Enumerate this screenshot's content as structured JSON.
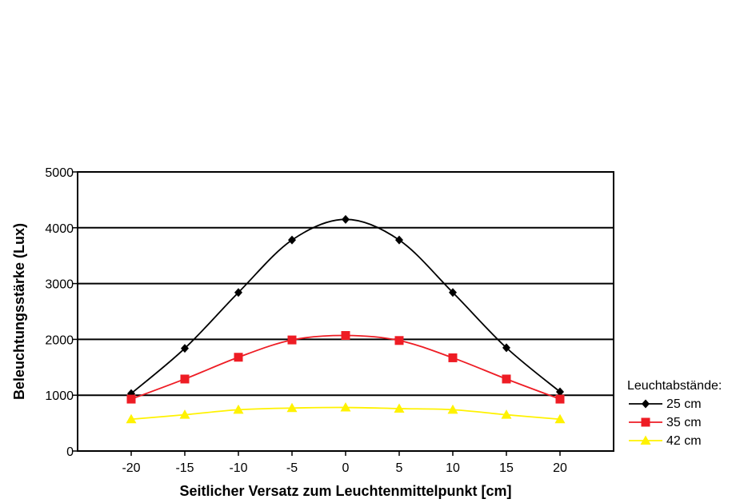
{
  "chart_data": {
    "type": "line",
    "x": [
      -20,
      -15,
      -10,
      -5,
      0,
      5,
      10,
      15,
      20
    ],
    "xlabel": "Seitlicher Versatz zum Leuchtenmittelpunkt [cm]",
    "ylabel": "Beleuchtungsstärke (Lux)",
    "xlim": [
      -25,
      25
    ],
    "ylim": [
      0,
      5000
    ],
    "yticks": [
      0,
      1000,
      2000,
      3000,
      4000,
      5000
    ],
    "xticks": [
      -20,
      -15,
      -10,
      -5,
      0,
      5,
      10,
      15,
      20
    ],
    "grid": "horizontal",
    "legend_title": "Leuchtabstände:",
    "legend_position": "right",
    "series": [
      {
        "name": "25 cm",
        "color": "#000000",
        "marker": "diamond",
        "values": [
          1030,
          1840,
          2840,
          3780,
          4150,
          3780,
          2840,
          1850,
          1060
        ]
      },
      {
        "name": "35 cm",
        "color": "#ee1c24",
        "marker": "square",
        "values": [
          930,
          1290,
          1680,
          1990,
          2070,
          1980,
          1670,
          1290,
          930
        ]
      },
      {
        "name": "42 cm",
        "color": "#fff200",
        "marker": "triangle",
        "values": [
          570,
          650,
          740,
          770,
          780,
          760,
          740,
          650,
          570
        ]
      }
    ]
  }
}
